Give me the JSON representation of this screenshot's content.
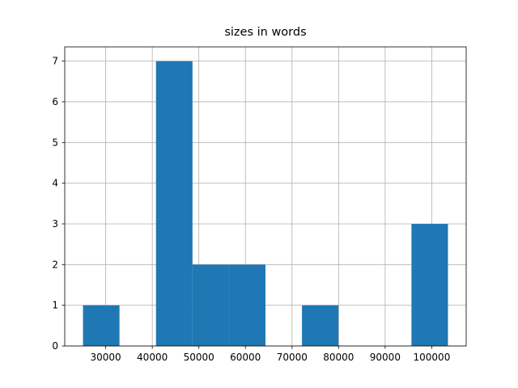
{
  "chart_data": {
    "type": "histogram",
    "title": "sizes in words",
    "bins": [
      25124,
      32960,
      40795,
      48631,
      56467,
      64302,
      72138,
      79974,
      87810,
      95645,
      103481
    ],
    "counts": [
      1,
      0,
      7,
      2,
      2,
      0,
      1,
      0,
      0,
      3
    ],
    "color": "#1f77b4",
    "xlim": [
      21206,
      107399
    ],
    "ylim": [
      0,
      7.35
    ],
    "xticks": [
      30000,
      40000,
      50000,
      60000,
      70000,
      80000,
      90000,
      100000
    ],
    "yticks": [
      0,
      1,
      2,
      3,
      4,
      5,
      6,
      7
    ],
    "grid": true
  }
}
